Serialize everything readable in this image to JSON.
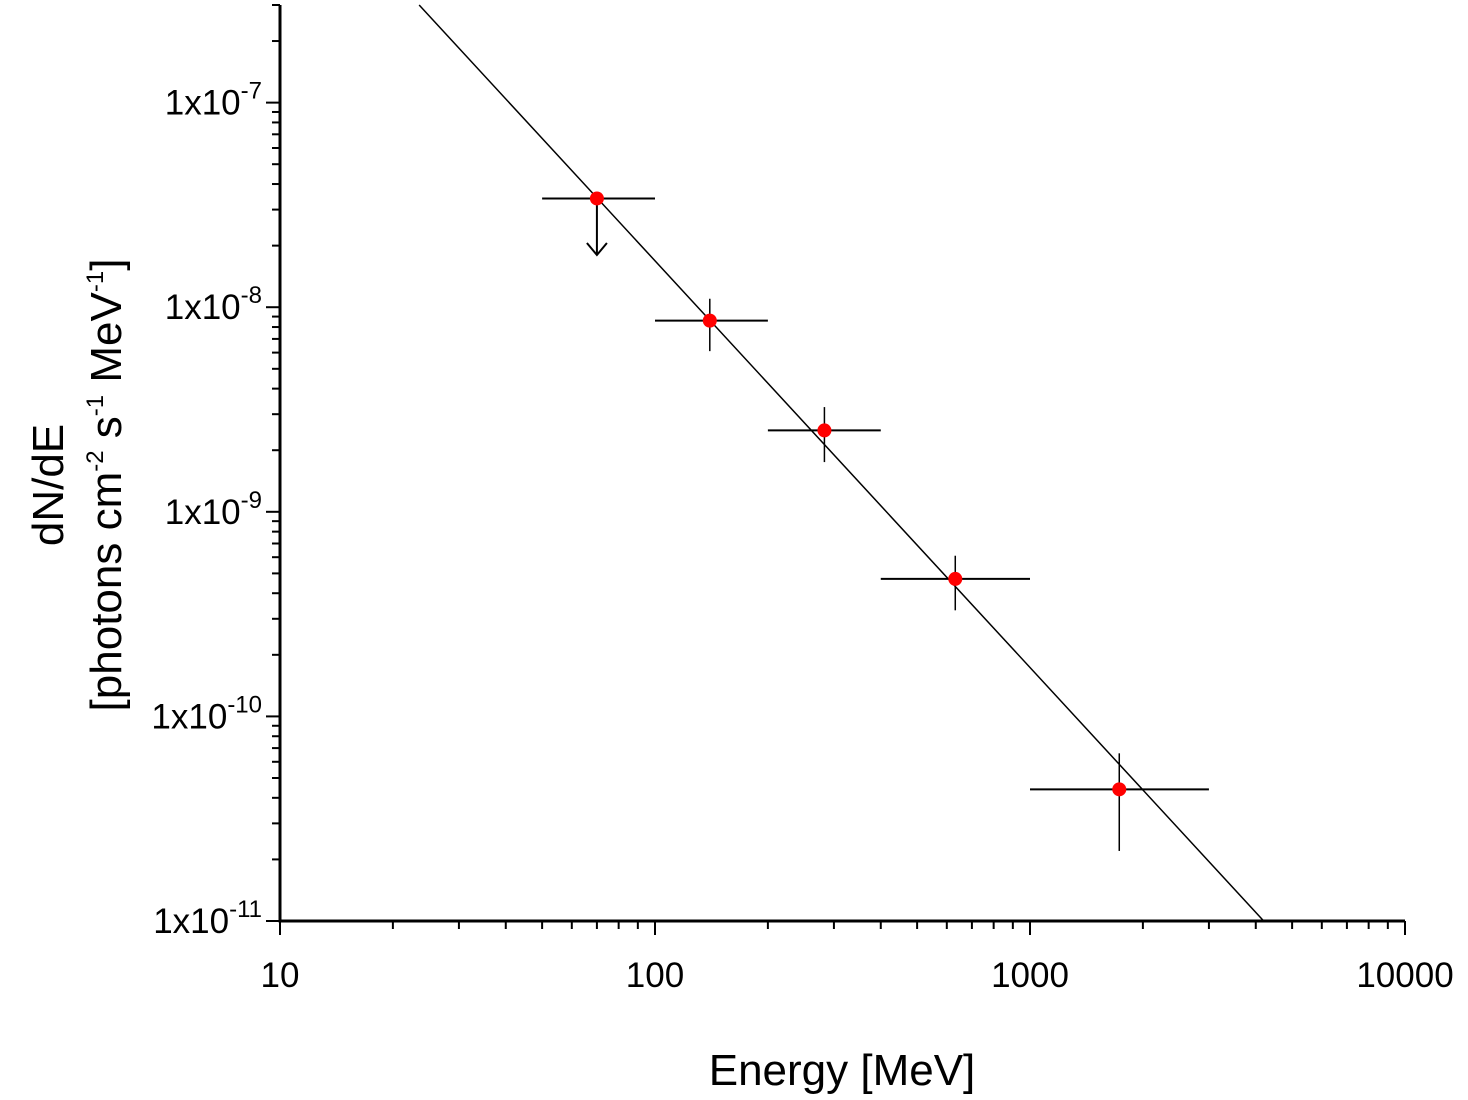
{
  "chart_data": {
    "type": "scatter",
    "title": "",
    "xlabel": "Energy [MeV]",
    "ylabel_line1": "dN/dE",
    "ylabel_line2_parts": [
      "[photons cm",
      "-2",
      " s",
      "-1",
      " MeV",
      "-1",
      "]"
    ],
    "xscale": "log",
    "yscale": "log",
    "xlim": [
      10,
      10000
    ],
    "ylim": [
      1e-11,
      3e-07
    ],
    "grid": false,
    "x_ticks": [
      {
        "value": 10,
        "label": "10"
      },
      {
        "value": 100,
        "label": "100"
      },
      {
        "value": 1000,
        "label": "1000"
      },
      {
        "value": 10000,
        "label": "10000"
      }
    ],
    "y_ticks": [
      {
        "value": 1e-11,
        "mantissa": "1x10",
        "exponent": "-11"
      },
      {
        "value": 1e-10,
        "mantissa": "1x10",
        "exponent": "-10"
      },
      {
        "value": 1e-09,
        "mantissa": "1x10",
        "exponent": "-9"
      },
      {
        "value": 1e-08,
        "mantissa": "1x10",
        "exponent": "-8"
      },
      {
        "value": 1e-07,
        "mantissa": "1x10",
        "exponent": "-7"
      }
    ],
    "points": [
      {
        "x": 70,
        "y": 3.4e-08,
        "x_low": 50,
        "x_high": 100,
        "upper_limit": true,
        "arrow_to": 1.8e-08
      },
      {
        "x": 140,
        "y": 8.6e-09,
        "x_low": 100,
        "x_high": 200,
        "y_low": 6.1e-09,
        "y_high": 1.1e-08,
        "upper_limit": false
      },
      {
        "x": 283,
        "y": 2.5e-09,
        "x_low": 200,
        "x_high": 400,
        "y_low": 1.75e-09,
        "y_high": 3.25e-09,
        "upper_limit": false
      },
      {
        "x": 632,
        "y": 4.7e-10,
        "x_low": 400,
        "x_high": 1000,
        "y_low": 3.3e-10,
        "y_high": 6.1e-10,
        "upper_limit": false
      },
      {
        "x": 1730,
        "y": 4.4e-11,
        "x_low": 1000,
        "x_high": 3000,
        "y_low": 2.2e-11,
        "y_high": 6.6e-11,
        "upper_limit": false
      }
    ],
    "fit_line": {
      "x_start": 23.5,
      "y_start": 3e-07,
      "x_end": 4200,
      "y_end": 1e-11
    },
    "colors": {
      "point": "#ff0000",
      "line": "#000000",
      "axis": "#000000"
    }
  }
}
